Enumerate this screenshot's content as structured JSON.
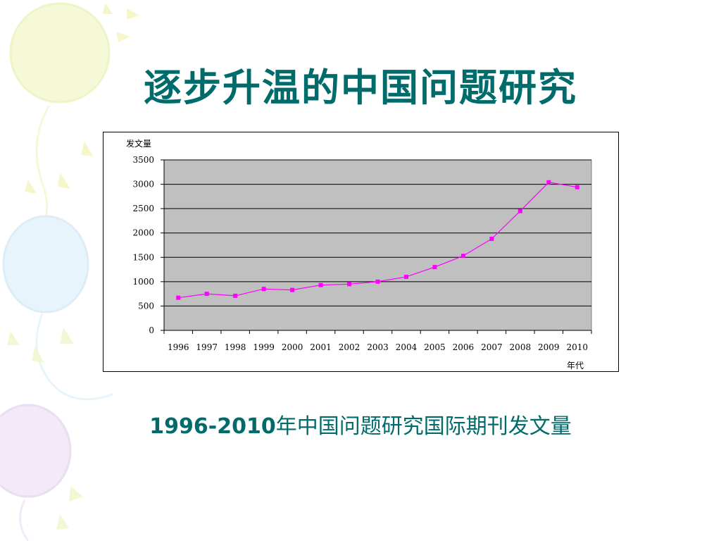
{
  "title": "逐步升温的中国问题研究",
  "caption": {
    "bold_part": "1996-2010",
    "rest": "年中国问题研究国际期刊发文量"
  },
  "colors": {
    "title": "#006b6b",
    "plot_bg": "#c0c0c0",
    "series": "#ff00ff"
  },
  "chart_data": {
    "type": "line",
    "ylabel": "发文量",
    "xlabel": "年代",
    "categories": [
      "1996",
      "1997",
      "1998",
      "1999",
      "2000",
      "2001",
      "2002",
      "2003",
      "2004",
      "2005",
      "2006",
      "2007",
      "2008",
      "2009",
      "2010"
    ],
    "values": [
      670,
      750,
      710,
      850,
      830,
      930,
      950,
      1000,
      1100,
      1300,
      1530,
      1880,
      2450,
      3040,
      2940
    ],
    "ylim": [
      0,
      3500
    ],
    "yticks": [
      "0",
      "500",
      "1000",
      "1500",
      "2000",
      "2500",
      "3000",
      "3500"
    ],
    "grid": true,
    "legend": "none"
  }
}
